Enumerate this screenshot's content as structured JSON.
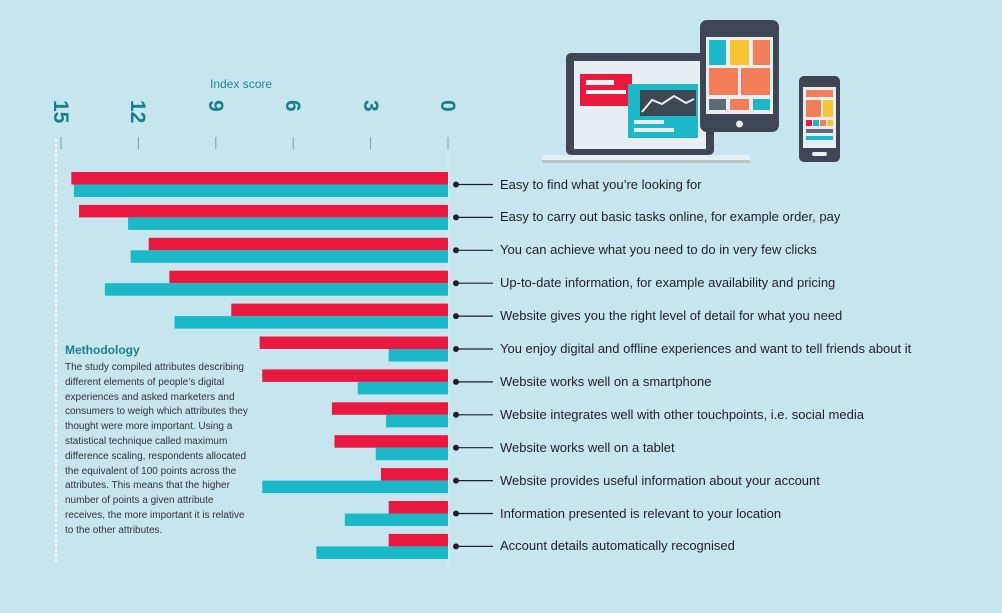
{
  "chart_data": {
    "type": "bar",
    "orientation": "horizontal-reversed",
    "xlabel": "Index score",
    "xlim": [
      0,
      15
    ],
    "xticks": [
      "15",
      "12",
      "9",
      "6",
      "3",
      "0"
    ],
    "categories": [
      "Easy to find what you’re looking for",
      "Easy to carry out basic tasks online, for example order, pay",
      "You can achieve what you need to do in very few clicks",
      "Up-to-date information, for example availability and pricing",
      "Website gives you the right level of detail for what you need",
      "You enjoy digital and offline experiences and want to tell friends about it",
      "Website works well on a smartphone",
      "Website integrates well with other touchpoints, i.e. social media",
      "Website works well on a tablet",
      "Website provides useful information about your account",
      "Information presented is relevant to your location",
      "Account details automatically recognised"
    ],
    "series": [
      {
        "color": "#e8183e",
        "values": [
          14.6,
          14.3,
          11.6,
          10.8,
          8.4,
          7.3,
          7.2,
          4.5,
          4.4,
          2.6,
          2.3,
          2.3
        ]
      },
      {
        "color": "#1ab8c8",
        "values": [
          14.5,
          12.4,
          12.3,
          13.3,
          10.6,
          2.3,
          3.5,
          2.4,
          2.8,
          7.2,
          4.0,
          5.1
        ]
      }
    ],
    "grid": false
  },
  "methodology": {
    "title": "Methodology",
    "text": "The study compiled attributes describing different elements of people’s digital experiences and asked marketers and consumers to weigh which attributes they thought were more important. Using a statistical technique called maximum difference scaling, respondents allocated the equivalent of 100 points across the attributes. This means that the higher number of points a given attribute receives, the more important it is relative to the other attributes."
  },
  "colors": {
    "background": "#c8e6f0",
    "accent": "#157f8c",
    "device_frame": "#3d4652"
  },
  "illustration": [
    "laptop-icon",
    "tablet-icon",
    "smartphone-icon"
  ]
}
